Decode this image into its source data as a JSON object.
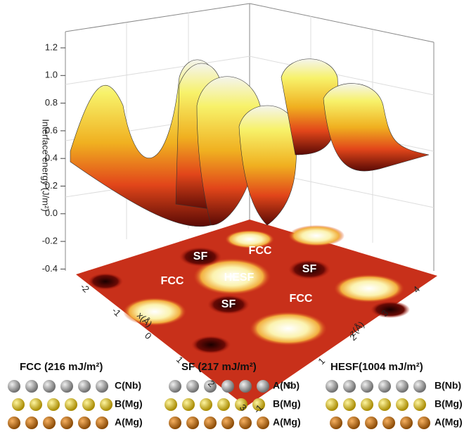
{
  "plot": {
    "y_axis_label": "Interface energy (J/m²)",
    "yticks": [
      "1.2",
      "1.0",
      "0.8",
      "0.6",
      "0.4",
      "0.2",
      "0.0",
      "-0.2",
      "-0.4"
    ],
    "x_axis_label": "x(Å)",
    "xticks": [
      "-2",
      "-1",
      "0",
      "1",
      "2",
      "3"
    ],
    "z_axis_label": "z(Å)",
    "zticks": [
      "-1",
      "0",
      "1",
      "2",
      "3",
      "4"
    ],
    "contour_labels": [
      "SF",
      "FCC",
      "FCC",
      "HESF",
      "SF",
      "SF",
      "FCC"
    ]
  },
  "stackings": [
    {
      "title": "FCC (216 mJ/m²)",
      "layers": [
        "C(Nb)",
        "B(Mg)",
        "A(Mg)"
      ]
    },
    {
      "title": "SF (217 mJ/m²)",
      "layers": [
        "A(Nb)",
        "B(Mg)",
        "A(Mg)"
      ]
    },
    {
      "title": "HESF(1004 mJ/m²)",
      "layers": [
        "B(Nb)",
        "B(Mg)",
        "A(Mg)"
      ]
    }
  ]
}
